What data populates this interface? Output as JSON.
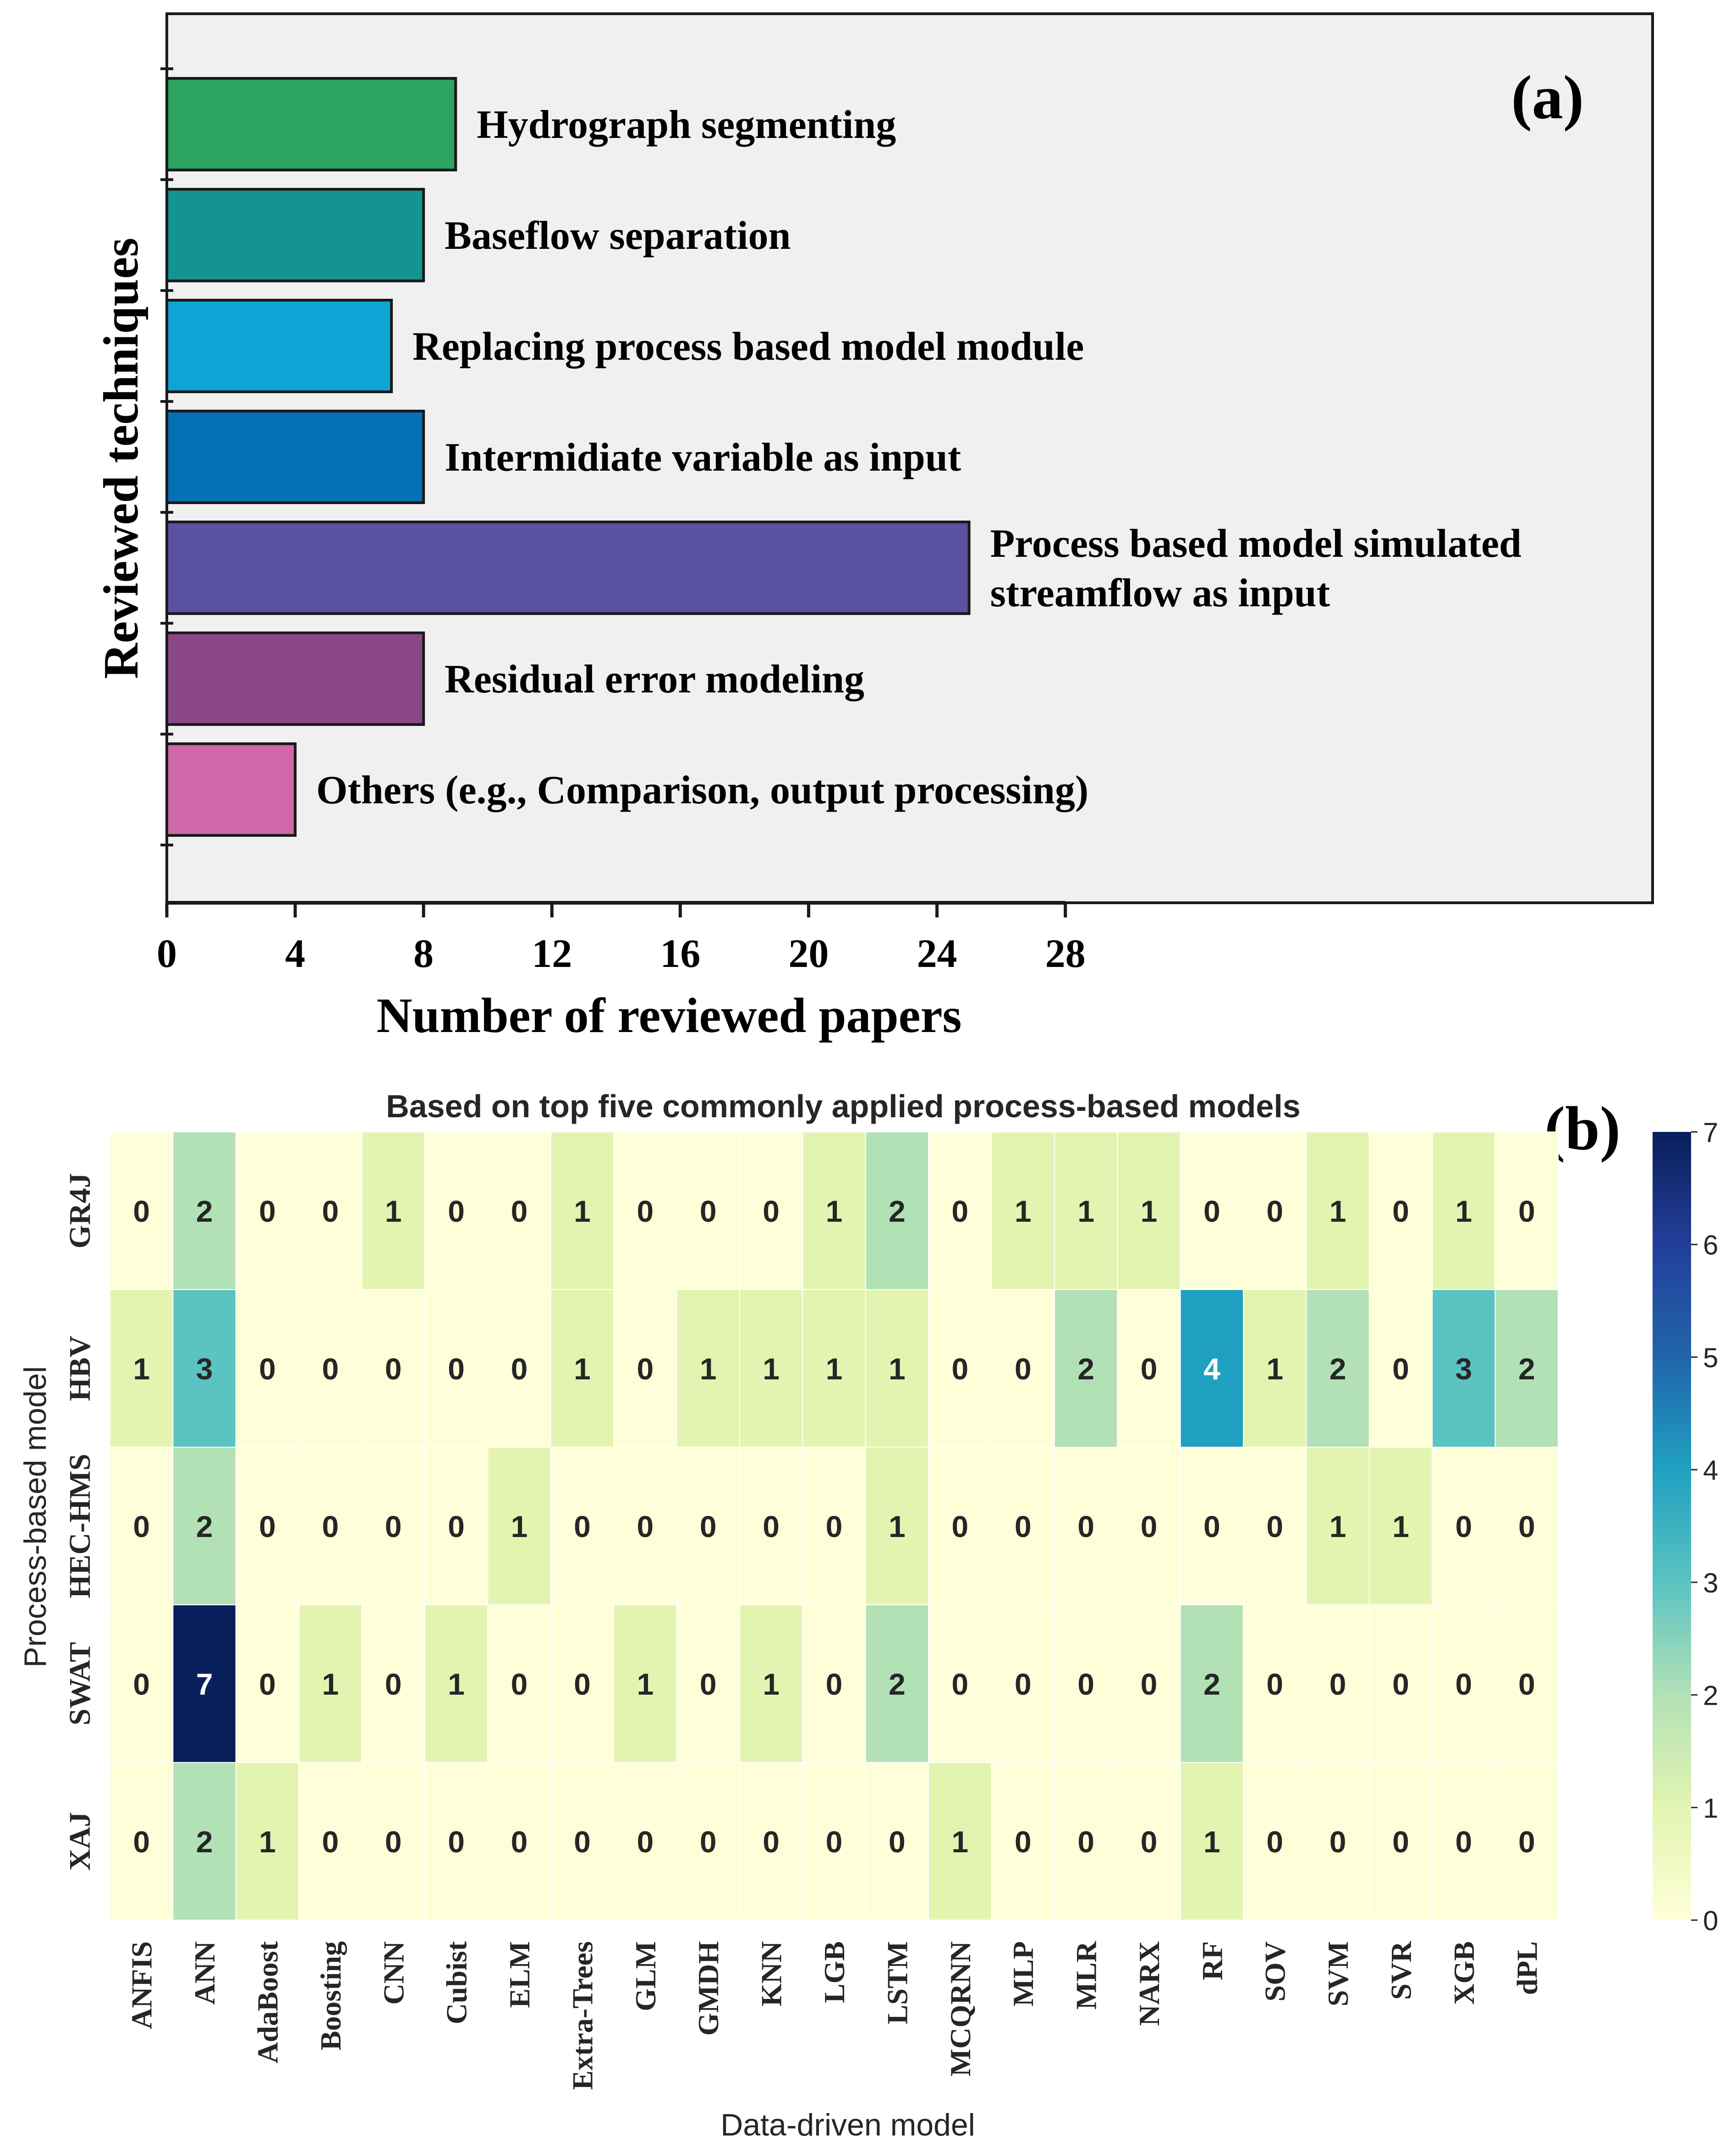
{
  "panel_a": {
    "label": "(a)",
    "chart_data": {
      "type": "bar",
      "orientation": "horizontal",
      "categories": [
        "Hydrograph segmenting",
        "Baseflow separation",
        "Replacing process based model module",
        "Intermidiate variable as input",
        "Process based model simulated streamflow as input",
        "Residual error modeling",
        "Others (e.g., Comparison, output processing)"
      ],
      "category_lines": [
        [
          "Hydrograph segmenting"
        ],
        [
          "Baseflow separation"
        ],
        [
          "Replacing process based model module"
        ],
        [
          "Intermidiate variable as input"
        ],
        [
          "Process based model simulated",
          "streamflow as input"
        ],
        [
          "Residual error modeling"
        ],
        [
          "Others (e.g., Comparison, output processing)"
        ]
      ],
      "values": [
        9,
        8,
        7,
        8,
        25,
        8,
        4
      ],
      "colors": [
        "#2ca35f",
        "#139491",
        "#0ea5d6",
        "#0571b5",
        "#5a51a3",
        "#8b4887",
        "#cf67a8"
      ],
      "xlabel": "Number of reviewed papers",
      "ylabel": "Reviewed techniques",
      "xticks": [
        0,
        4,
        8,
        12,
        16,
        20,
        24,
        28
      ],
      "xlim": [
        0,
        46.3
      ],
      "grid": false,
      "background": "#f0f0f0"
    }
  },
  "panel_b": {
    "label": "(b)",
    "chart_data": {
      "type": "heatmap",
      "title": "Based on top five commonly applied process-based models",
      "xlabel": "Data-driven model",
      "ylabel": "Process-based model",
      "x": [
        "ANFIS",
        "ANN",
        "AdaBoost",
        "Boosting",
        "CNN",
        "Cubist",
        "ELM",
        "Extra-Trees",
        "GLM",
        "GMDH",
        "KNN",
        "LGB",
        "LSTM",
        "MCQRNN",
        "MLP",
        "MLR",
        "NARX",
        "RF",
        "SOV",
        "SVM",
        "SVR",
        "XGB",
        "dPL"
      ],
      "y": [
        "GR4J",
        "HBV",
        "HEC-HMS",
        "SWAT",
        "XAJ"
      ],
      "values": [
        [
          0,
          2,
          0,
          0,
          1,
          0,
          0,
          1,
          0,
          0,
          0,
          1,
          2,
          0,
          1,
          1,
          1,
          0,
          0,
          1,
          0,
          1,
          0
        ],
        [
          1,
          3,
          0,
          0,
          0,
          0,
          0,
          1,
          0,
          1,
          1,
          1,
          1,
          0,
          0,
          2,
          0,
          4,
          1,
          2,
          0,
          3,
          2
        ],
        [
          0,
          2,
          0,
          0,
          0,
          0,
          1,
          0,
          0,
          0,
          0,
          0,
          1,
          0,
          0,
          0,
          0,
          0,
          0,
          1,
          1,
          0,
          0
        ],
        [
          0,
          7,
          0,
          1,
          0,
          1,
          0,
          0,
          1,
          0,
          1,
          0,
          2,
          0,
          0,
          0,
          0,
          2,
          0,
          0,
          0,
          0,
          0
        ],
        [
          0,
          2,
          1,
          0,
          0,
          0,
          0,
          0,
          0,
          0,
          0,
          0,
          0,
          1,
          0,
          0,
          0,
          1,
          0,
          0,
          0,
          0,
          0
        ]
      ],
      "colormap": "YlGnBu",
      "colormap_stops": [
        "#feffd8",
        "#e3f4b1",
        "#b2e1b6",
        "#5bc3c1",
        "#1fa0c1",
        "#2165ab",
        "#233e9a",
        "#091f5b"
      ],
      "vmin": 0,
      "vmax": 7,
      "colorbar_ticks": [
        0,
        1,
        2,
        3,
        4,
        5,
        6,
        7
      ]
    }
  }
}
